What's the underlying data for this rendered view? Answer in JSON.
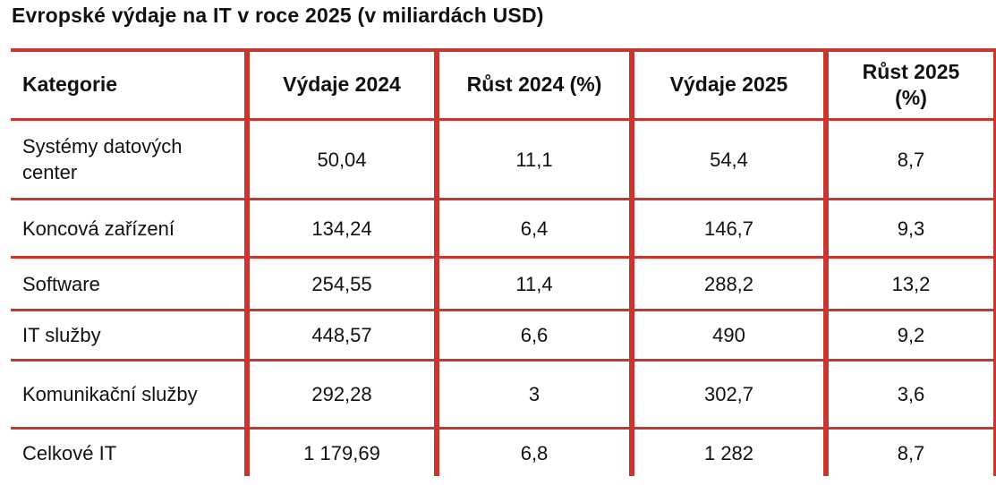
{
  "title": "Evropské výdaje na IT v roce 2025 (v miliardách USD)",
  "colors": {
    "border": "#c8372d",
    "text": "#111111"
  },
  "table": {
    "headers": [
      "Kategorie",
      "Výdaje 2024",
      "Růst 2024 (%)",
      "Výdaje 2025",
      "Růst 2025 (%)"
    ],
    "rows": [
      [
        "Systémy datových center",
        "50,04",
        "11,1",
        "54,4",
        "8,7"
      ],
      [
        "Koncová zařízení",
        "134,24",
        "6,4",
        "146,7",
        "9,3"
      ],
      [
        "Software",
        "254,55",
        "11,4",
        "288,2",
        "13,2"
      ],
      [
        "IT služby",
        "448,57",
        "6,6",
        "490",
        "9,2"
      ],
      [
        "Komunikační služby",
        "292,28",
        "3",
        "302,7",
        "3,6"
      ],
      [
        "Celkové IT",
        "1 179,69",
        "6,8",
        "1 282",
        "8,7"
      ]
    ]
  }
}
